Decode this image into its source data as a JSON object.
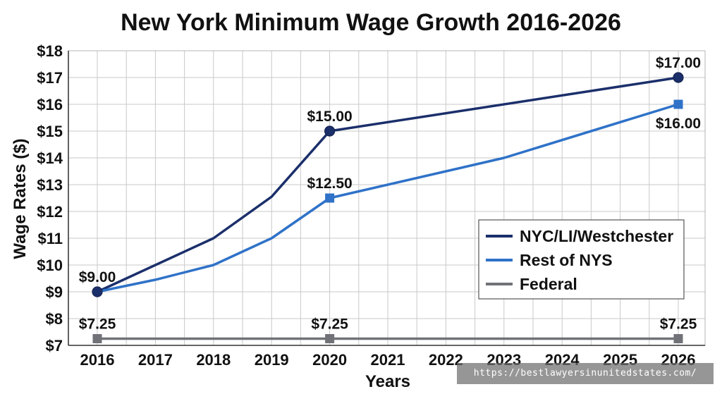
{
  "chart_data": {
    "type": "line",
    "title": "New York Minimum Wage Growth 2016-2026",
    "xlabel": "Years",
    "ylabel": "Wage Rates ($)",
    "x": [
      "2016",
      "2017",
      "2018",
      "2019",
      "2020",
      "2021",
      "2022",
      "2023",
      "2024",
      "2025",
      "2026"
    ],
    "yticks": [
      "$7",
      "$8",
      "$9",
      "$10",
      "$11",
      "$12",
      "$13",
      "$14",
      "$15",
      "$16",
      "$17",
      "$18"
    ],
    "ylim": [
      7,
      18
    ],
    "grid": true,
    "legend_position": "lower-right",
    "series": [
      {
        "name": "NYC/LI/Westchester",
        "color": "#1b2f6b",
        "marker": "circle",
        "x": [
          2016,
          2018,
          2019,
          2020,
          2026
        ],
        "values": [
          9.0,
          11.0,
          12.55,
          15.0,
          17.0
        ],
        "markers_at": [
          2016,
          2020,
          2026
        ],
        "labels": [
          {
            "x": 2016,
            "y": 9.0,
            "text": "$9.00",
            "pos": "above"
          },
          {
            "x": 2020,
            "y": 15.0,
            "text": "$15.00",
            "pos": "above"
          },
          {
            "x": 2026,
            "y": 17.0,
            "text": "$17.00",
            "pos": "above"
          }
        ]
      },
      {
        "name": "Rest of NYS",
        "color": "#2f72c8",
        "marker": "square",
        "x": [
          2016,
          2017,
          2018,
          2019,
          2020,
          2023,
          2026
        ],
        "values": [
          9.0,
          9.45,
          10.0,
          11.0,
          12.5,
          14.0,
          16.0
        ],
        "markers_at": [
          2020,
          2026
        ],
        "labels": [
          {
            "x": 2020,
            "y": 12.5,
            "text": "$12.50",
            "pos": "above"
          },
          {
            "x": 2026,
            "y": 16.0,
            "text": "$16.00",
            "pos": "below"
          }
        ]
      },
      {
        "name": "Federal",
        "color": "#707277",
        "marker": "square",
        "x": [
          2016,
          2020,
          2026
        ],
        "values": [
          7.25,
          7.25,
          7.25
        ],
        "markers_at": [
          2016,
          2020,
          2026
        ],
        "labels": [
          {
            "x": 2016,
            "y": 7.25,
            "text": "$7.25",
            "pos": "above"
          },
          {
            "x": 2020,
            "y": 7.25,
            "text": "$7.25",
            "pos": "above"
          },
          {
            "x": 2026,
            "y": 7.25,
            "text": "$7.25",
            "pos": "above"
          }
        ]
      }
    ]
  },
  "watermark": "https://bestlawyersinunitedstates.com/"
}
